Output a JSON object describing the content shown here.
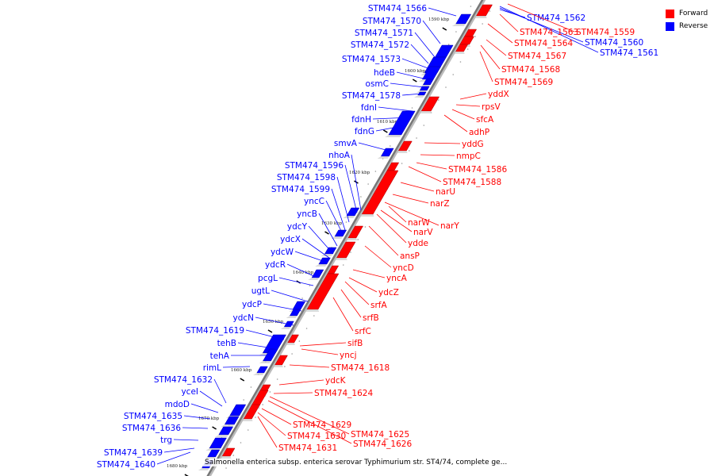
{
  "legend": {
    "forward_label": "Forward",
    "reverse_label": "Reverse",
    "forward_color": "#ff0000",
    "reverse_color": "#0000ff"
  },
  "caption": "Salmonella enterica subsp. enterica serovar Typhimurium str. ST4/74, complete ge...",
  "scale_labels": [
    "1590 kbp",
    "1600 kbp",
    "1610 kbp",
    "1620 kbp",
    "1630 kbp",
    "1640 kbp",
    "1650 kbp",
    "1660 kbp",
    "1670 kbp",
    "1680 kbp"
  ],
  "reverse_genes": [
    "STM474_1566",
    "STM474_1570",
    "STM474_1571",
    "STM474_1572",
    "STM474_1573",
    "hdeB",
    "osmC",
    "STM474_1578",
    "fdnI",
    "fdnH",
    "fdnG",
    "smvA",
    "nhoA",
    "STM474_1596",
    "STM474_1598",
    "STM474_1599",
    "yncC",
    "yncB",
    "ydcY",
    "ydcX",
    "ydcW",
    "ydcR",
    "pcgL",
    "ugtL",
    "ydcP",
    "ydcN",
    "STM474_1619",
    "tehB",
    "tehA",
    "rimL",
    "STM474_1632",
    "yceI",
    "mdoD",
    "STM474_1635",
    "STM474_1636",
    "trg",
    "STM474_1639",
    "STM474_1640",
    "STM474_1562",
    "STM474_1560",
    "STM474_1561"
  ],
  "forward_genes": [
    "STM474_1563",
    "STM474_1559",
    "STM474_1564",
    "STM474_1567",
    "STM474_1568",
    "STM474_1569",
    "yddX",
    "rpsV",
    "sfcA",
    "adhP",
    "yddG",
    "nmpC",
    "STM474_1586",
    "STM474_1588",
    "narU",
    "narZ",
    "narW",
    "narY",
    "narV",
    "ydde",
    "ansP",
    "yncD",
    "yncA",
    "ydcZ",
    "srfA",
    "srfB",
    "srfC",
    "sifB",
    "yncj",
    "STM474_1618",
    "ydcK",
    "STM474_1624",
    "STM474_1629",
    "STM474_1625",
    "STM474_1630",
    "STM474_1626",
    "STM474_1631"
  ]
}
